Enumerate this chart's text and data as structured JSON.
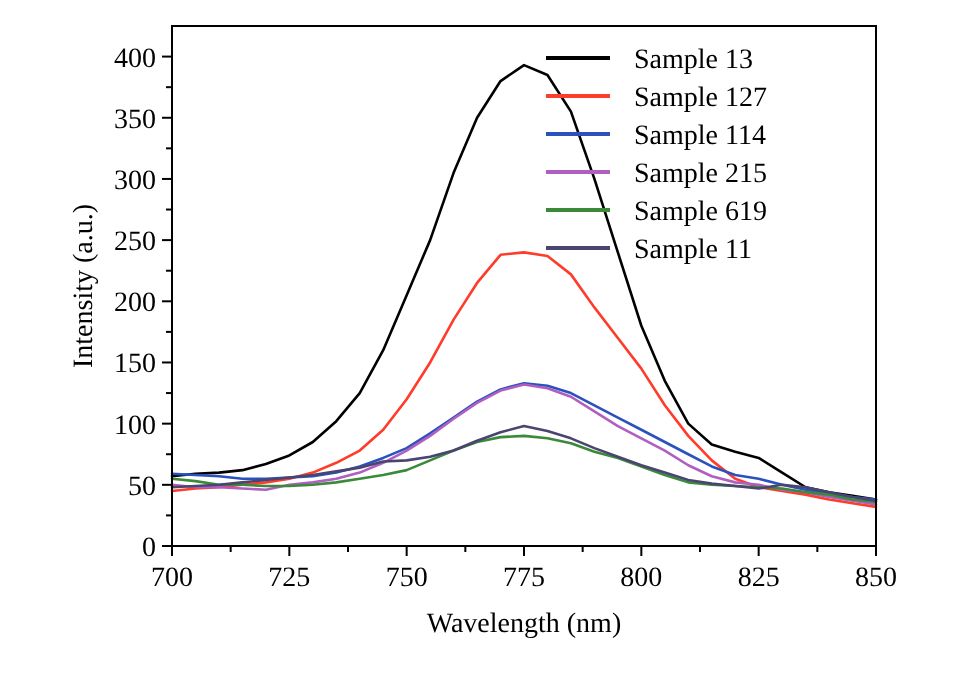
{
  "chart_data": {
    "type": "line",
    "xlabel": "Wavelength (nm)",
    "ylabel": "Intensity (a.u.)",
    "x": [
      700,
      705,
      710,
      715,
      720,
      725,
      730,
      735,
      740,
      745,
      750,
      755,
      760,
      765,
      770,
      775,
      780,
      785,
      790,
      795,
      800,
      805,
      810,
      815,
      820,
      825,
      830,
      835,
      840,
      845,
      850
    ],
    "xlim": [
      700,
      850
    ],
    "ylim": [
      0,
      425
    ],
    "xticks": [
      700,
      {
        "value": 712.5,
        "label": null
      },
      725,
      {
        "value": 737.5,
        "label": null
      },
      750,
      {
        "value": 762.5,
        "label": null
      },
      775,
      {
        "value": 787.5,
        "label": null
      },
      800,
      {
        "value": 812.5,
        "label": null
      },
      825,
      {
        "value": 837.5,
        "label": null
      },
      850
    ],
    "yticks": [
      0,
      {
        "value": 25,
        "label": null
      },
      50,
      {
        "value": 75,
        "label": null
      },
      100,
      {
        "value": 125,
        "label": null
      },
      150,
      {
        "value": 175,
        "label": null
      },
      200,
      {
        "value": 225,
        "label": null
      },
      250,
      {
        "value": 275,
        "label": null
      },
      300,
      {
        "value": 325,
        "label": null
      },
      350,
      {
        "value": 375,
        "label": null
      },
      400
    ],
    "grid": false,
    "legend": "top right",
    "marker": "none",
    "line_style": "solid",
    "series": [
      {
        "name": "Sample 13",
        "color": "#000000",
        "values": [
          57,
          59,
          60,
          62,
          67,
          74,
          85,
          102,
          125,
          160,
          205,
          250,
          305,
          350,
          380,
          393,
          385,
          355,
          300,
          240,
          180,
          135,
          100,
          83,
          77,
          72,
          60,
          48,
          44,
          41,
          38
        ]
      },
      {
        "name": "Sample 127",
        "color": "#ff3b2a",
        "values": [
          45,
          47,
          48,
          50,
          52,
          55,
          60,
          68,
          78,
          95,
          120,
          150,
          185,
          215,
          238,
          240,
          237,
          222,
          195,
          170,
          145,
          115,
          90,
          70,
          55,
          48,
          45,
          42,
          38,
          35,
          32
        ]
      },
      {
        "name": "Sample 114",
        "color": "#2a52be",
        "values": [
          59,
          58,
          57,
          55,
          55,
          56,
          57,
          60,
          65,
          72,
          80,
          92,
          105,
          118,
          128,
          133,
          131,
          125,
          115,
          105,
          95,
          85,
          75,
          65,
          58,
          55,
          50,
          46,
          43,
          40,
          38
        ]
      },
      {
        "name": "Sample 215",
        "color": "#b05fc0",
        "values": [
          50,
          48,
          48,
          47,
          46,
          50,
          52,
          55,
          60,
          68,
          78,
          90,
          104,
          117,
          127,
          132,
          129,
          122,
          110,
          98,
          88,
          78,
          66,
          57,
          52,
          50,
          46,
          44,
          40,
          37,
          34
        ]
      },
      {
        "name": "Sample 619",
        "color": "#3a8a3a",
        "values": [
          55,
          53,
          50,
          50,
          49,
          49,
          50,
          52,
          55,
          58,
          62,
          70,
          78,
          85,
          89,
          90,
          88,
          84,
          77,
          72,
          65,
          58,
          52,
          50,
          49,
          48,
          47,
          44,
          42,
          38,
          36
        ]
      },
      {
        "name": "Sample 11",
        "color": "#4a4470",
        "values": [
          48,
          49,
          50,
          52,
          54,
          56,
          58,
          61,
          64,
          69,
          70,
          73,
          78,
          86,
          93,
          98,
          94,
          88,
          80,
          73,
          66,
          60,
          54,
          51,
          49,
          47,
          50,
          48,
          44,
          40,
          37
        ]
      }
    ]
  }
}
